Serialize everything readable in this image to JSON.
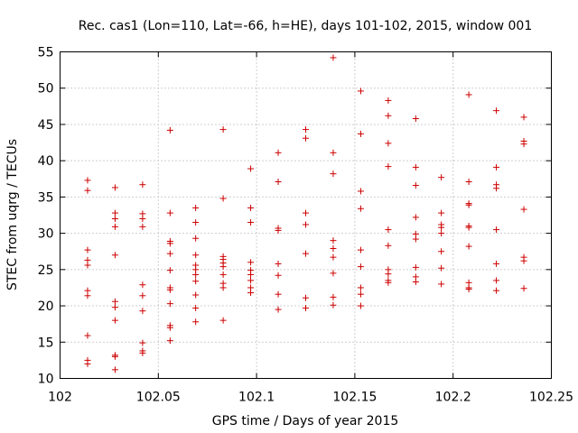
{
  "chart_data": {
    "type": "scatter",
    "title": "Rec. cas1 (Lon=110, Lat=-66, h=HE), days 101-102, 2015, window 001",
    "xlabel": "GPS time / Days of year 2015",
    "ylabel": "STEC from uqrg / TECUs",
    "xlim": [
      102,
      102.25
    ],
    "ylim": [
      10,
      55
    ],
    "xticks": [
      "102",
      "102.05",
      "102.1",
      "102.15",
      "102.2",
      "102.25"
    ],
    "yticks": [
      "10",
      "15",
      "20",
      "25",
      "30",
      "35",
      "40",
      "45",
      "50",
      "55"
    ],
    "grid": true,
    "marker": "+",
    "color": "#cc0000",
    "points": [
      [
        102.014,
        37.3
      ],
      [
        102.014,
        35.9
      ],
      [
        102.014,
        27.7
      ],
      [
        102.014,
        26.3
      ],
      [
        102.014,
        25.6
      ],
      [
        102.014,
        22.1
      ],
      [
        102.014,
        21.4
      ],
      [
        102.014,
        15.9
      ],
      [
        102.014,
        12.5
      ],
      [
        102.014,
        12.0
      ],
      [
        102.028,
        36.3
      ],
      [
        102.028,
        32.8
      ],
      [
        102.028,
        32.0
      ],
      [
        102.028,
        30.9
      ],
      [
        102.028,
        27.0
      ],
      [
        102.028,
        20.6
      ],
      [
        102.028,
        19.8
      ],
      [
        102.028,
        18.0
      ],
      [
        102.028,
        13.2
      ],
      [
        102.028,
        13.0
      ],
      [
        102.028,
        11.2
      ],
      [
        102.042,
        36.7
      ],
      [
        102.042,
        32.7
      ],
      [
        102.042,
        32.0
      ],
      [
        102.042,
        30.9
      ],
      [
        102.042,
        22.9
      ],
      [
        102.042,
        21.4
      ],
      [
        102.042,
        19.3
      ],
      [
        102.042,
        14.9
      ],
      [
        102.042,
        13.8
      ],
      [
        102.042,
        13.5
      ],
      [
        102.056,
        44.2
      ],
      [
        102.056,
        32.8
      ],
      [
        102.056,
        28.9
      ],
      [
        102.056,
        28.6
      ],
      [
        102.056,
        27.2
      ],
      [
        102.056,
        24.9
      ],
      [
        102.056,
        22.5
      ],
      [
        102.056,
        22.2
      ],
      [
        102.056,
        20.3
      ],
      [
        102.056,
        17.3
      ],
      [
        102.056,
        17.0
      ],
      [
        102.056,
        15.2
      ],
      [
        102.069,
        33.5
      ],
      [
        102.069,
        31.5
      ],
      [
        102.069,
        29.3
      ],
      [
        102.069,
        27.0
      ],
      [
        102.069,
        25.6
      ],
      [
        102.069,
        25.0
      ],
      [
        102.069,
        24.3
      ],
      [
        102.069,
        23.4
      ],
      [
        102.069,
        21.5
      ],
      [
        102.069,
        19.7
      ],
      [
        102.069,
        17.8
      ],
      [
        102.083,
        44.3
      ],
      [
        102.083,
        34.8
      ],
      [
        102.083,
        26.8
      ],
      [
        102.083,
        26.4
      ],
      [
        102.083,
        25.9
      ],
      [
        102.083,
        25.4
      ],
      [
        102.083,
        24.3
      ],
      [
        102.083,
        23.1
      ],
      [
        102.083,
        22.5
      ],
      [
        102.083,
        18.0
      ],
      [
        102.097,
        38.9
      ],
      [
        102.097,
        33.5
      ],
      [
        102.097,
        31.5
      ],
      [
        102.097,
        26.0
      ],
      [
        102.097,
        24.9
      ],
      [
        102.097,
        24.3
      ],
      [
        102.097,
        23.5
      ],
      [
        102.097,
        22.5
      ],
      [
        102.097,
        21.8
      ],
      [
        102.111,
        41.1
      ],
      [
        102.111,
        37.1
      ],
      [
        102.111,
        30.7
      ],
      [
        102.111,
        30.4
      ],
      [
        102.111,
        25.8
      ],
      [
        102.111,
        24.2
      ],
      [
        102.111,
        21.6
      ],
      [
        102.111,
        19.5
      ],
      [
        102.125,
        44.3
      ],
      [
        102.125,
        43.1
      ],
      [
        102.125,
        32.8
      ],
      [
        102.125,
        31.2
      ],
      [
        102.125,
        27.2
      ],
      [
        102.125,
        21.1
      ],
      [
        102.125,
        19.7
      ],
      [
        102.139,
        54.2
      ],
      [
        102.139,
        41.1
      ],
      [
        102.139,
        38.2
      ],
      [
        102.139,
        29.0
      ],
      [
        102.139,
        27.9
      ],
      [
        102.139,
        26.7
      ],
      [
        102.139,
        24.5
      ],
      [
        102.139,
        21.2
      ],
      [
        102.139,
        20.1
      ],
      [
        102.153,
        49.6
      ],
      [
        102.153,
        43.7
      ],
      [
        102.153,
        35.8
      ],
      [
        102.153,
        33.4
      ],
      [
        102.153,
        27.7
      ],
      [
        102.153,
        25.4
      ],
      [
        102.153,
        22.5
      ],
      [
        102.153,
        21.6
      ],
      [
        102.153,
        20.0
      ],
      [
        102.167,
        48.3
      ],
      [
        102.167,
        46.2
      ],
      [
        102.167,
        42.4
      ],
      [
        102.167,
        39.2
      ],
      [
        102.167,
        30.5
      ],
      [
        102.167,
        28.3
      ],
      [
        102.167,
        25.0
      ],
      [
        102.167,
        24.4
      ],
      [
        102.167,
        23.5
      ],
      [
        102.167,
        23.2
      ],
      [
        102.181,
        45.8
      ],
      [
        102.181,
        39.1
      ],
      [
        102.181,
        36.6
      ],
      [
        102.181,
        32.2
      ],
      [
        102.181,
        29.9
      ],
      [
        102.181,
        29.2
      ],
      [
        102.181,
        25.3
      ],
      [
        102.181,
        24.0
      ],
      [
        102.181,
        23.3
      ],
      [
        102.194,
        37.7
      ],
      [
        102.194,
        32.8
      ],
      [
        102.194,
        31.2
      ],
      [
        102.194,
        30.8
      ],
      [
        102.194,
        30.0
      ],
      [
        102.194,
        27.5
      ],
      [
        102.194,
        25.2
      ],
      [
        102.194,
        23.0
      ],
      [
        102.208,
        49.1
      ],
      [
        102.208,
        37.1
      ],
      [
        102.208,
        34.1
      ],
      [
        102.208,
        33.9
      ],
      [
        102.208,
        31.0
      ],
      [
        102.208,
        30.8
      ],
      [
        102.208,
        28.2
      ],
      [
        102.208,
        23.2
      ],
      [
        102.208,
        22.5
      ],
      [
        102.208,
        22.3
      ],
      [
        102.222,
        46.9
      ],
      [
        102.222,
        39.1
      ],
      [
        102.222,
        36.7
      ],
      [
        102.222,
        36.2
      ],
      [
        102.222,
        30.5
      ],
      [
        102.222,
        25.8
      ],
      [
        102.222,
        23.5
      ],
      [
        102.222,
        22.1
      ],
      [
        102.236,
        46.0
      ],
      [
        102.236,
        42.7
      ],
      [
        102.236,
        42.3
      ],
      [
        102.236,
        33.3
      ],
      [
        102.236,
        26.7
      ],
      [
        102.236,
        26.2
      ],
      [
        102.236,
        22.4
      ]
    ]
  }
}
